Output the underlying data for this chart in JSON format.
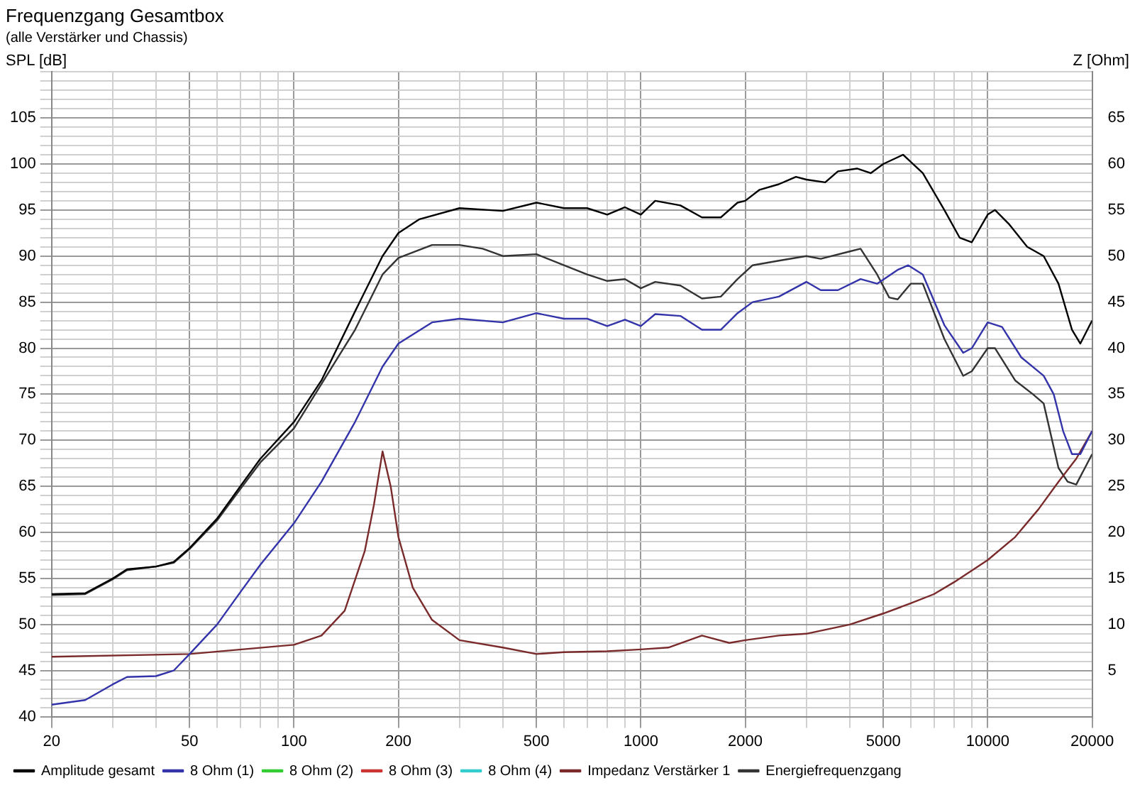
{
  "chart_data": {
    "type": "line",
    "title": "Frequenzgang Gesamtbox",
    "subtitle": "(alle Verstärker und Chassis)",
    "ylabel": "SPL [dB]",
    "y2label": "Z [Ohm]",
    "log": "x",
    "grid": true,
    "legend": "bottom",
    "marker": "none",
    "line_style": "solid",
    "xlim": [
      20,
      20000
    ],
    "xticks": [
      20,
      {
        "value": 30,
        "label": null
      },
      {
        "value": 40,
        "label": null
      },
      50,
      {
        "value": 60,
        "label": null
      },
      {
        "value": 70,
        "label": null
      },
      {
        "value": 80,
        "label": null
      },
      {
        "value": 90,
        "label": null
      },
      100,
      200,
      {
        "value": 300,
        "label": null
      },
      {
        "value": 400,
        "label": null
      },
      500,
      {
        "value": 600,
        "label": null
      },
      {
        "value": 700,
        "label": null
      },
      {
        "value": 800,
        "label": null
      },
      {
        "value": 900,
        "label": null
      },
      1000,
      2000,
      {
        "value": 3000,
        "label": null
      },
      {
        "value": 4000,
        "label": null
      },
      5000,
      {
        "value": 6000,
        "label": null
      },
      {
        "value": 7000,
        "label": null
      },
      {
        "value": 8000,
        "label": null
      },
      {
        "value": 9000,
        "label": null
      },
      10000,
      20000
    ],
    "ylim": [
      40,
      110
    ],
    "yticks": [
      40,
      {
        "value": 41,
        "label": null
      },
      {
        "value": 42,
        "label": null
      },
      {
        "value": 43,
        "label": null
      },
      {
        "value": 44,
        "label": null
      },
      45,
      {
        "value": 46,
        "label": null
      },
      {
        "value": 47,
        "label": null
      },
      {
        "value": 48,
        "label": null
      },
      {
        "value": 49,
        "label": null
      },
      50,
      {
        "value": 51,
        "label": null
      },
      {
        "value": 52,
        "label": null
      },
      {
        "value": 53,
        "label": null
      },
      {
        "value": 54,
        "label": null
      },
      55,
      {
        "value": 56,
        "label": null
      },
      {
        "value": 57,
        "label": null
      },
      {
        "value": 58,
        "label": null
      },
      {
        "value": 59,
        "label": null
      },
      60,
      {
        "value": 61,
        "label": null
      },
      {
        "value": 62,
        "label": null
      },
      {
        "value": 63,
        "label": null
      },
      {
        "value": 64,
        "label": null
      },
      65,
      {
        "value": 66,
        "label": null
      },
      {
        "value": 67,
        "label": null
      },
      {
        "value": 68,
        "label": null
      },
      {
        "value": 69,
        "label": null
      },
      70,
      {
        "value": 71,
        "label": null
      },
      {
        "value": 72,
        "label": null
      },
      {
        "value": 73,
        "label": null
      },
      {
        "value": 74,
        "label": null
      },
      75,
      {
        "value": 76,
        "label": null
      },
      {
        "value": 77,
        "label": null
      },
      {
        "value": 78,
        "label": null
      },
      {
        "value": 79,
        "label": null
      },
      80,
      {
        "value": 81,
        "label": null
      },
      {
        "value": 82,
        "label": null
      },
      {
        "value": 83,
        "label": null
      },
      {
        "value": 84,
        "label": null
      },
      85,
      {
        "value": 86,
        "label": null
      },
      {
        "value": 87,
        "label": null
      },
      {
        "value": 88,
        "label": null
      },
      {
        "value": 89,
        "label": null
      },
      90,
      {
        "value": 91,
        "label": null
      },
      {
        "value": 92,
        "label": null
      },
      {
        "value": 93,
        "label": null
      },
      {
        "value": 94,
        "label": null
      },
      95,
      {
        "value": 96,
        "label": null
      },
      {
        "value": 97,
        "label": null
      },
      {
        "value": 98,
        "label": null
      },
      {
        "value": 99,
        "label": null
      },
      100,
      {
        "value": 101,
        "label": null
      },
      {
        "value": 102,
        "label": null
      },
      {
        "value": 103,
        "label": null
      },
      {
        "value": 104,
        "label": null
      },
      105,
      {
        "value": 106,
        "label": null
      },
      {
        "value": 107,
        "label": null
      },
      {
        "value": 108,
        "label": null
      },
      {
        "value": 109,
        "label": null
      },
      {
        "value": 110,
        "label": null
      }
    ],
    "y2lim": [
      0,
      70
    ],
    "y2ticks": [
      5,
      10,
      15,
      20,
      25,
      30,
      35,
      40,
      45,
      50,
      55,
      60,
      65
    ],
    "series": [
      {
        "name": "Amplitude gesamt",
        "color": "#000000",
        "x": [
          20,
          25,
          30,
          33,
          40,
          45,
          50,
          60,
          70,
          80,
          100,
          120,
          150,
          180,
          200,
          230,
          300,
          400,
          500,
          600,
          700,
          800,
          900,
          1000,
          1100,
          1300,
          1500,
          1700,
          1900,
          2000,
          2200,
          2500,
          2800,
          3000,
          3400,
          3700,
          4200,
          4600,
          5000,
          5700,
          6500,
          7500,
          8300,
          9000,
          10000,
          10500,
          11500,
          13000,
          14500,
          16000,
          17500,
          18500,
          20000
        ],
        "values": [
          53.3,
          53.4,
          55,
          56,
          56.3,
          56.8,
          58.3,
          61.5,
          65,
          68,
          72,
          76.5,
          84,
          90,
          92.5,
          94,
          95.2,
          94.9,
          95.8,
          95.2,
          95.2,
          94.5,
          95.3,
          94.5,
          96,
          95.5,
          94.2,
          94.2,
          95.8,
          96,
          97.2,
          97.8,
          98.6,
          98.3,
          98,
          99.2,
          99.5,
          99,
          100,
          101,
          99,
          95,
          92,
          91.5,
          94.5,
          95,
          93.5,
          91,
          90,
          87,
          82,
          80.5,
          83
        ]
      },
      {
        "name": "8 Ohm (1)",
        "color": "#3333aa",
        "x": [
          20,
          25,
          30,
          33,
          40,
          45,
          50,
          60,
          70,
          80,
          100,
          120,
          150,
          180,
          200,
          250,
          300,
          400,
          500,
          600,
          700,
          800,
          900,
          1000,
          1100,
          1300,
          1500,
          1700,
          1900,
          2100,
          2500,
          3000,
          3300,
          3700,
          4300,
          4800,
          5500,
          5900,
          6500,
          7500,
          8500,
          9000,
          10000,
          11000,
          12500,
          14500,
          15500,
          16500,
          17500,
          18500,
          20000
        ],
        "values": [
          41.3,
          41.8,
          43.5,
          44.3,
          44.4,
          45,
          46.8,
          50,
          53.5,
          56.5,
          61,
          65.5,
          72,
          78,
          80.5,
          82.8,
          83.2,
          82.8,
          83.8,
          83.2,
          83.2,
          82.4,
          83.1,
          82.4,
          83.7,
          83.5,
          82,
          82,
          83.8,
          85,
          85.6,
          87.2,
          86.3,
          86.3,
          87.5,
          87,
          88.5,
          89,
          88,
          82.5,
          79.5,
          80,
          82.8,
          82.3,
          79,
          77,
          75,
          71,
          68.5,
          68.5,
          71
        ]
      },
      {
        "name": "8 Ohm (2)",
        "color": "#33cc33"
      },
      {
        "name": "8 Ohm (3)",
        "color": "#cc3333"
      },
      {
        "name": "8 Ohm (4)",
        "color": "#33cccc"
      },
      {
        "name": "Impedanz Verstärker 1",
        "color": "#7a2a2a",
        "axis": "y2",
        "x": [
          20,
          50,
          100,
          120,
          140,
          160,
          170,
          180,
          190,
          200,
          220,
          250,
          300,
          400,
          500,
          600,
          800,
          1000,
          1200,
          1500,
          1800,
          2000,
          2500,
          3000,
          4000,
          5000,
          6000,
          7000,
          8000,
          10000,
          12000,
          14000,
          16000,
          18000,
          20000
        ],
        "values": [
          6.5,
          6.8,
          7.8,
          8.8,
          11.5,
          18,
          23,
          28.8,
          25,
          19.5,
          14,
          10.5,
          8.3,
          7.5,
          6.8,
          7,
          7.1,
          7.3,
          7.5,
          8.8,
          8,
          8.3,
          8.8,
          9,
          10,
          11.2,
          12.3,
          13.3,
          14.6,
          17,
          19.5,
          22.5,
          25.5,
          28,
          31
        ]
      },
      {
        "name": "Energiefrequenzgang",
        "color": "#333333",
        "x": [
          20,
          25,
          30,
          33,
          40,
          45,
          50,
          60,
          70,
          80,
          100,
          150,
          180,
          200,
          250,
          300,
          350,
          400,
          500,
          600,
          700,
          800,
          900,
          1000,
          1100,
          1300,
          1500,
          1700,
          1900,
          2100,
          2500,
          3000,
          3300,
          4000,
          4300,
          4800,
          5200,
          5500,
          6000,
          6500,
          7500,
          8500,
          9000,
          10000,
          10500,
          12000,
          13500,
          14500,
          16000,
          17000,
          18000,
          20000
        ],
        "values": [
          53.2,
          53.3,
          54.9,
          55.9,
          56.3,
          56.7,
          58.2,
          61.3,
          64.7,
          67.6,
          71.3,
          82,
          88,
          89.8,
          91.2,
          91.2,
          90.8,
          90,
          90.2,
          89,
          88,
          87.3,
          87.5,
          86.5,
          87.2,
          86.8,
          85.4,
          85.6,
          87.5,
          89,
          89.5,
          90,
          89.7,
          90.5,
          90.8,
          88,
          85.5,
          85.3,
          87,
          87,
          81,
          77,
          77.5,
          80,
          80,
          76.5,
          75,
          74,
          67,
          65.5,
          65.2,
          68.5
        ]
      }
    ]
  }
}
